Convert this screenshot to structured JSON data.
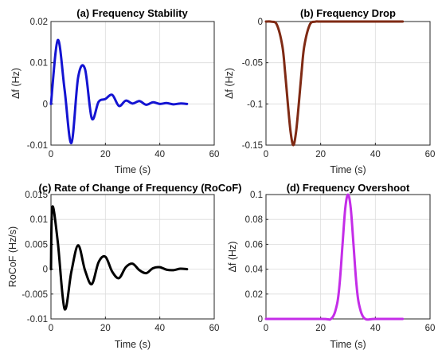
{
  "chart_data": [
    {
      "type": "line",
      "title": "(a) Frequency Stability",
      "xlabel": "Time (s)",
      "ylabel": "Δf (Hz)",
      "xlim": [
        0,
        60
      ],
      "ylim": [
        -0.01,
        0.02
      ],
      "xticks": [
        "0",
        "20",
        "40",
        "60"
      ],
      "yticks": [
        "-0.01",
        "0",
        "0.01",
        "0.02"
      ],
      "grid": true,
      "color": "#1414d2",
      "series": [
        {
          "x": [
            0,
            2.5,
            5,
            7.5,
            10,
            12.5,
            15,
            17.5,
            20,
            22.5,
            25,
            27.5,
            30,
            32.5,
            35,
            37.5,
            40,
            42.5,
            45,
            47.5,
            50
          ],
          "values": [
            0,
            0.0155,
            0.0035,
            -0.0095,
            0.0065,
            0.0085,
            -0.0035,
            0.0005,
            0.0012,
            0.0022,
            -0.0005,
            0.0008,
            0.0001,
            0.0007,
            -0.0002,
            0.0004,
            0.0,
            0.0002,
            -0.0001,
            0.0001,
            0.0
          ]
        }
      ]
    },
    {
      "type": "line",
      "title": "(b) Frequency Drop",
      "xlabel": "Time (s)",
      "ylabel": "Δf (Hz)",
      "xlim": [
        0,
        60
      ],
      "ylim": [
        -0.15,
        0
      ],
      "xticks": [
        "0",
        "20",
        "40",
        "60"
      ],
      "yticks": [
        "-0.15",
        "-0.1",
        "-0.05",
        "0"
      ],
      "grid": true,
      "color": "#7f2a14",
      "series": [
        {
          "x": [
            0,
            2,
            4,
            6,
            7,
            8,
            9,
            10,
            11,
            12,
            13,
            14,
            16,
            18,
            20,
            30,
            40,
            50
          ],
          "values": [
            0,
            -0.0002,
            -0.004,
            -0.03,
            -0.062,
            -0.1,
            -0.134,
            -0.15,
            -0.134,
            -0.1,
            -0.062,
            -0.03,
            -0.004,
            -0.0002,
            0,
            0,
            0,
            0
          ]
        }
      ]
    },
    {
      "type": "line",
      "title": "(c) Rate of Change of Frequency (RoCoF)",
      "xlabel": "Time (s)",
      "ylabel": "RoCoF (Hz/s)",
      "xlim": [
        0,
        60
      ],
      "ylim": [
        -0.01,
        0.015
      ],
      "xticks": [
        "0",
        "20",
        "40",
        "60"
      ],
      "yticks": [
        "-0.01",
        "-0.005",
        "0",
        "0.005",
        "0.01",
        "0.015"
      ],
      "grid": true,
      "color": "#000000",
      "series": [
        {
          "x": [
            0,
            0.5,
            2.5,
            5,
            7.5,
            10,
            12.5,
            15,
            17.5,
            20,
            22.5,
            25,
            27.5,
            30,
            32.5,
            35,
            37.5,
            40,
            42.5,
            45,
            47.5,
            50
          ],
          "values": [
            0,
            0.0125,
            0.0055,
            -0.008,
            -0.0005,
            0.0048,
            -0.0002,
            -0.003,
            0.0014,
            0.0025,
            -0.0005,
            -0.0018,
            0.0004,
            0.0011,
            -0.0002,
            -0.0008,
            0.0002,
            0.0004,
            -0.0001,
            -0.0002,
            0.0001,
            0.0
          ]
        }
      ]
    },
    {
      "type": "line",
      "title": "(d) Frequency Overshoot",
      "xlabel": "Time (s)",
      "ylabel": "Δf (Hz)",
      "xlim": [
        0,
        60
      ],
      "ylim": [
        0,
        0.1
      ],
      "xticks": [
        "0",
        "20",
        "40",
        "60"
      ],
      "yticks": [
        "0",
        "0.02",
        "0.04",
        "0.06",
        "0.08",
        "0.1"
      ],
      "grid": true,
      "color": "#c42de8",
      "series": [
        {
          "x": [
            0,
            20,
            24,
            26,
            27,
            28,
            29,
            30,
            31,
            32,
            33,
            34,
            36,
            40,
            50
          ],
          "values": [
            0,
            0,
            0.0005,
            0.012,
            0.03,
            0.06,
            0.089,
            0.1,
            0.089,
            0.06,
            0.03,
            0.012,
            0.0005,
            0,
            0
          ]
        }
      ]
    }
  ]
}
